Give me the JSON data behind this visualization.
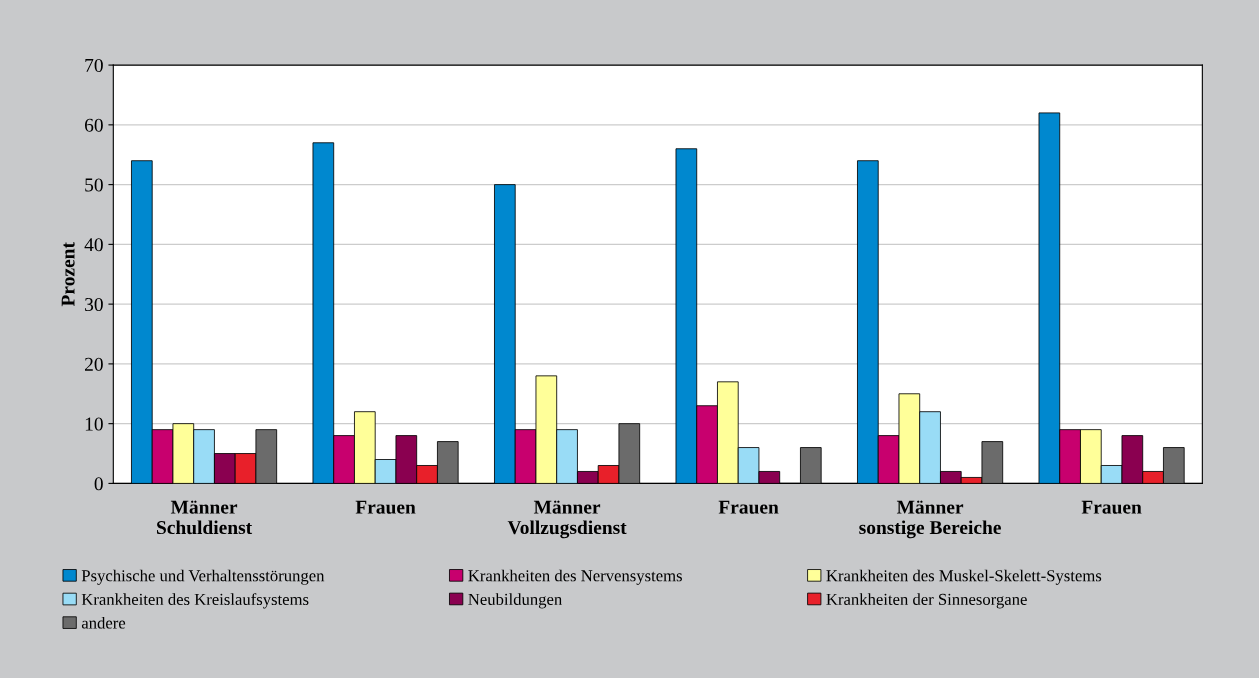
{
  "chart_data": {
    "type": "bar",
    "ylabel": "Prozent",
    "categories": [
      "Männer\nSchuldienst",
      "Frauen",
      "Männer\nVollzugsdienst",
      "Frauen",
      "Männer\nsonstige Bereiche",
      "Frauen"
    ],
    "series": [
      {
        "name": "Psychische und Verhaltensstörungen",
        "color": "#0088cf",
        "values": [
          54,
          57,
          50,
          56,
          54,
          62
        ]
      },
      {
        "name": "Krankheiten des Nervensystems",
        "color": "#c8006e",
        "values": [
          9,
          8,
          9,
          13,
          8,
          9
        ]
      },
      {
        "name": "Krankheiten des Muskel-Skelett-Systems",
        "color": "#ffff99",
        "values": [
          10,
          12,
          18,
          17,
          15,
          9
        ]
      },
      {
        "name": "Krankheiten des Kreislaufsystems",
        "color": "#99dcf6",
        "values": [
          9,
          4,
          9,
          6,
          12,
          3
        ]
      },
      {
        "name": "Neubildungen",
        "color": "#8a0050",
        "values": [
          5,
          8,
          2,
          2,
          2,
          8
        ]
      },
      {
        "name": "Krankheiten der Sinnesorgane",
        "color": "#e8202a",
        "values": [
          5,
          3,
          3,
          0,
          1,
          2
        ]
      },
      {
        "name": "andere",
        "color": "#6b6b6b",
        "values": [
          9,
          7,
          10,
          6,
          7,
          6
        ]
      }
    ],
    "ylim": [
      0,
      70
    ],
    "yticks": [
      0,
      10,
      20,
      30,
      40,
      50,
      60,
      70
    ],
    "grid": "y",
    "legend": "bottom"
  }
}
